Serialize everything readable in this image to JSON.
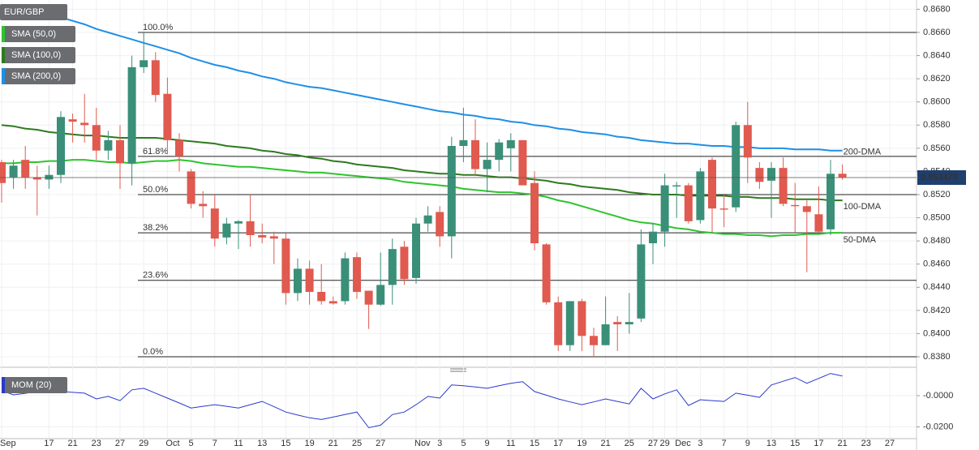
{
  "chart_data": [
    {
      "type": "candlestick",
      "title": "EUR/GBP",
      "categories": [
        "Sep",
        null,
        null,
        null,
        "17",
        null,
        "21",
        null,
        "23",
        null,
        "27",
        null,
        "29",
        null,
        "Oct",
        null,
        "5",
        null,
        "7",
        null,
        "11",
        null,
        "13",
        null,
        "15",
        null,
        "19",
        null,
        "21",
        null,
        "25",
        null,
        "27",
        null,
        null,
        "Nov",
        null,
        "3",
        null,
        "5",
        null,
        "9",
        null,
        "11",
        null,
        "15",
        null,
        "17",
        null,
        "19",
        null,
        "21",
        null,
        "25",
        null,
        "27",
        "29",
        "Dec",
        null,
        "3",
        null,
        "7",
        null,
        "9",
        null,
        "13",
        null,
        "15",
        null,
        "17",
        null,
        "21",
        null,
        "23",
        null,
        "27"
      ],
      "open": [
        0.8548,
        0.8535,
        0.855,
        0.8535,
        0.8533,
        0.8537,
        0.8585,
        0.8582,
        0.858,
        0.8558,
        0.8567,
        0.8547,
        0.863,
        0.8636,
        0.8607,
        0.8567,
        0.854,
        0.8512,
        0.8508,
        0.8483,
        0.8495,
        0.8497,
        0.8485,
        0.8484,
        0.8482,
        0.8435,
        0.8456,
        0.8436,
        0.8428,
        0.8428,
        0.8466,
        0.8437,
        0.8425,
        0.8442,
        0.8475,
        0.8448,
        0.8495,
        0.8505,
        0.8484,
        0.8562,
        0.8567,
        0.8542,
        0.855,
        0.856,
        0.8567,
        0.853,
        0.8477,
        0.8427,
        0.839,
        0.8428,
        0.8398,
        0.839,
        0.841,
        0.8408,
        0.8413,
        0.8478,
        0.8488,
        0.8527,
        0.8528,
        0.8498,
        0.855,
        0.8508,
        0.8509,
        0.858,
        0.8543,
        0.8532,
        0.8543,
        0.8511,
        0.851,
        0.8503,
        0.849,
        0.8538,
        null,
        null,
        null,
        null
      ],
      "high": [
        0.855,
        0.855,
        0.8562,
        0.8545,
        0.8545,
        0.8592,
        0.859,
        0.8607,
        0.8595,
        0.8575,
        0.858,
        0.864,
        0.866,
        0.8643,
        0.8621,
        0.8573,
        0.8542,
        0.8523,
        0.852,
        0.85,
        0.8498,
        0.852,
        0.8495,
        0.8488,
        0.8487,
        0.8465,
        0.8463,
        0.846,
        0.8432,
        0.847,
        0.847,
        0.8437,
        0.847,
        0.8482,
        0.848,
        0.85,
        0.851,
        0.851,
        0.857,
        0.8595,
        0.8585,
        0.8565,
        0.8568,
        0.8573,
        0.8567,
        0.854,
        0.8478,
        0.8432,
        0.8428,
        0.843,
        0.8405,
        0.8432,
        0.8415,
        0.8435,
        0.849,
        0.8495,
        0.8538,
        0.8531,
        0.853,
        0.8543,
        0.8552,
        0.852,
        0.8583,
        0.86,
        0.8548,
        0.8548,
        0.8552,
        0.853,
        0.8515,
        0.8527,
        0.855,
        0.8546,
        null,
        null,
        null,
        null
      ],
      "low": [
        0.8513,
        0.8525,
        0.8525,
        0.8502,
        0.8525,
        0.853,
        0.8565,
        0.8565,
        0.855,
        0.855,
        0.8525,
        0.8528,
        0.8625,
        0.86,
        0.8555,
        0.854,
        0.8508,
        0.85,
        0.8475,
        0.8477,
        0.8473,
        0.8475,
        0.8478,
        0.846,
        0.8425,
        0.8428,
        0.8425,
        0.8425,
        0.8425,
        0.8425,
        0.843,
        0.8404,
        0.8424,
        0.8425,
        0.8442,
        0.8443,
        0.8488,
        0.8475,
        0.8465,
        0.8548,
        0.8536,
        0.8522,
        0.854,
        0.854,
        0.8528,
        0.8472,
        0.8425,
        0.8385,
        0.8385,
        0.8385,
        0.838,
        0.839,
        0.8385,
        0.84,
        0.841,
        0.846,
        0.8475,
        0.85,
        0.8495,
        0.8495,
        0.8487,
        0.8492,
        0.8505,
        0.853,
        0.8525,
        0.85,
        0.851,
        0.8487,
        0.8453,
        0.8487,
        0.8485,
        0.8533,
        null,
        null,
        null,
        null
      ],
      "close": [
        0.853,
        0.8545,
        0.8535,
        0.8533,
        0.8537,
        0.8587,
        0.8583,
        0.858,
        0.8558,
        0.8567,
        0.8547,
        0.863,
        0.8636,
        0.8606,
        0.8567,
        0.8553,
        0.8512,
        0.851,
        0.8482,
        0.8495,
        0.8497,
        0.8485,
        0.8483,
        0.8482,
        0.8435,
        0.8456,
        0.8436,
        0.8428,
        0.8426,
        0.8465,
        0.8436,
        0.8425,
        0.8442,
        0.8473,
        0.8447,
        0.8495,
        0.8502,
        0.8484,
        0.8562,
        0.8567,
        0.8542,
        0.855,
        0.8565,
        0.8567,
        0.8528,
        0.8478,
        0.8427,
        0.839,
        0.8428,
        0.8398,
        0.839,
        0.8408,
        0.8408,
        0.841,
        0.8477,
        0.8488,
        0.8528,
        0.8528,
        0.8497,
        0.854,
        0.8508,
        0.8507,
        0.858,
        0.8552,
        0.8531,
        0.8543,
        0.8512,
        0.851,
        0.8505,
        0.8488,
        0.8538,
        0.8535,
        null,
        null,
        null,
        null
      ],
      "up_color": "#3a8f78",
      "down_color": "#e05a4f",
      "series": [
        {
          "name": "SMA (50,0)",
          "label": "50-DMA",
          "color": "#2ec42e",
          "values": [
            0.8547,
            0.8547,
            0.8548,
            0.8548,
            0.8549,
            0.8549,
            0.855,
            0.855,
            0.8549,
            0.8548,
            0.8548,
            0.8547,
            0.8548,
            0.8549,
            0.8549,
            0.855,
            0.8549,
            0.8547,
            0.8546,
            0.8545,
            0.8544,
            0.8544,
            0.8543,
            0.8542,
            0.8541,
            0.854,
            0.8539,
            0.8539,
            0.8538,
            0.8537,
            0.8536,
            0.8535,
            0.8534,
            0.8533,
            0.8531,
            0.853,
            0.8529,
            0.8528,
            0.8527,
            0.8525,
            0.8524,
            0.8523,
            0.8522,
            0.8522,
            0.8521,
            0.852,
            0.8518,
            0.8515,
            0.8513,
            0.851,
            0.8507,
            0.8504,
            0.8501,
            0.8498,
            0.8496,
            0.8495,
            0.8493,
            0.8491,
            0.849,
            0.8488,
            0.8487,
            0.8486,
            0.8486,
            0.8485,
            0.8485,
            0.8484,
            0.8485,
            0.8485,
            0.8486,
            0.8486,
            0.8487,
            0.8487,
            null,
            null,
            null,
            null
          ]
        },
        {
          "name": "SMA (100,0)",
          "label": "100-DMA",
          "color": "#2f7a1f",
          "values": [
            0.858,
            0.8579,
            0.8577,
            0.8576,
            0.8574,
            0.8573,
            0.8572,
            0.8571,
            0.8571,
            0.857,
            0.8569,
            0.8569,
            0.8569,
            0.8569,
            0.8568,
            0.8567,
            0.8566,
            0.8565,
            0.8564,
            0.8562,
            0.8561,
            0.856,
            0.8558,
            0.8557,
            0.8555,
            0.8554,
            0.8552,
            0.8551,
            0.8549,
            0.8548,
            0.8546,
            0.8545,
            0.8544,
            0.8543,
            0.8541,
            0.854,
            0.8539,
            0.8538,
            0.8538,
            0.8537,
            0.8537,
            0.8536,
            0.8535,
            0.8535,
            0.8534,
            0.8533,
            0.8532,
            0.853,
            0.8529,
            0.8527,
            0.8526,
            0.8525,
            0.8524,
            0.8522,
            0.8521,
            0.852,
            0.852,
            0.852,
            0.8519,
            0.8519,
            0.8519,
            0.8519,
            0.8518,
            0.8518,
            0.8517,
            0.8517,
            0.8517,
            0.8516,
            0.8516,
            0.8516,
            0.8515,
            0.8515,
            null,
            null,
            null,
            null
          ]
        },
        {
          "name": "SMA (200,0)",
          "label": "200-DMA",
          "color": "#1e8fe6",
          "values": [
            0.8683,
            0.8681,
            0.8679,
            0.8677,
            0.8675,
            0.8673,
            0.867,
            0.8667,
            0.8663,
            0.866,
            0.8657,
            0.8654,
            0.8651,
            0.8648,
            0.8645,
            0.8642,
            0.8638,
            0.8635,
            0.8632,
            0.863,
            0.8627,
            0.8625,
            0.8622,
            0.862,
            0.8617,
            0.8615,
            0.8613,
            0.8612,
            0.861,
            0.8608,
            0.8606,
            0.8604,
            0.8602,
            0.86,
            0.8598,
            0.8596,
            0.8594,
            0.8592,
            0.8591,
            0.8589,
            0.8588,
            0.8586,
            0.8585,
            0.8583,
            0.8582,
            0.858,
            0.8579,
            0.8577,
            0.8576,
            0.8574,
            0.8573,
            0.8572,
            0.857,
            0.8569,
            0.8567,
            0.8566,
            0.8565,
            0.8564,
            0.8564,
            0.8563,
            0.8562,
            0.8562,
            0.8561,
            0.8561,
            0.856,
            0.856,
            0.856,
            0.8559,
            0.8559,
            0.8559,
            0.8558,
            0.8558,
            null,
            null,
            null,
            null
          ]
        }
      ],
      "levels": [
        {
          "value": 0.866,
          "label": "100.0%"
        },
        {
          "value": 0.8553,
          "label": "61.8%"
        },
        {
          "value": 0.852,
          "label": "50.0%"
        },
        {
          "value": 0.8487,
          "label": "38.2%"
        },
        {
          "value": 0.8446,
          "label": "23.6%"
        },
        {
          "value": 0.838,
          "label": "0.0%"
        }
      ],
      "last_price": {
        "value": 0.85347,
        "label": "0.853470"
      },
      "ylim": [
        0.8373,
        0.8688
      ],
      "yticks": [
        {
          "value": 0.838,
          "label": "0.8380"
        },
        {
          "value": 0.84,
          "label": "0.8400"
        },
        {
          "value": 0.842,
          "label": "0.8420"
        },
        {
          "value": 0.844,
          "label": "0.8440"
        },
        {
          "value": 0.846,
          "label": "0.8460"
        },
        {
          "value": 0.848,
          "label": "0.8480"
        },
        {
          "value": 0.85,
          "label": "0.8500"
        },
        {
          "value": 0.852,
          "label": "0.8520"
        },
        {
          "value": 0.854,
          "label": "0.8540"
        },
        {
          "value": 0.856,
          "label": "0.8560"
        },
        {
          "value": 0.858,
          "label": "0.8580"
        },
        {
          "value": 0.86,
          "label": "0.8600"
        },
        {
          "value": 0.862,
          "label": "0.8620"
        },
        {
          "value": 0.864,
          "label": "0.8640"
        },
        {
          "value": 0.866,
          "label": "0.8660"
        },
        {
          "value": 0.868,
          "label": "0.8680"
        }
      ],
      "grid": true
    },
    {
      "type": "line",
      "series": [
        {
          "name": "MOM (20)",
          "color": "#2a39c9",
          "values": [
            0.0032,
            0.0005,
            0.0015,
            0.0026,
            0.0026,
            0.0026,
            0.0021,
            0.0016,
            -0.0021,
            -0.0005,
            -0.0032,
            0.0037,
            0.0047,
            0.0016,
            -0.0016,
            -0.0047,
            -0.0079,
            -0.0068,
            -0.0058,
            -0.0068,
            -0.0079,
            -0.0058,
            -0.0037,
            -0.0071,
            -0.0105,
            -0.0124,
            -0.0142,
            -0.0153,
            -0.0137,
            -0.0121,
            -0.0105,
            -0.0205,
            -0.0189,
            -0.0121,
            -0.0105,
            -0.0058,
            -0.0005,
            -0.0016,
            0.0068,
            0.0063,
            0.0055,
            0.0047,
            0.0063,
            0.0079,
            0.0089,
            0.0026,
            0.0003,
            -0.0021,
            -0.004,
            -0.0058,
            -0.004,
            -0.0021,
            -0.0037,
            -0.0053,
            0.0047,
            -0.0021,
            0.0011,
            0.0037,
            -0.0063,
            -0.0026,
            -0.0032,
            -0.0037,
            0.0016,
            0.0003,
            -0.0011,
            0.0068,
            0.0092,
            0.0116,
            0.0079,
            0.011,
            0.0142,
            0.0126,
            null,
            null,
            null,
            null
          ]
        }
      ],
      "ylim": [
        -0.027,
        0.0145
      ],
      "yticks": [
        {
          "value": 0,
          "label": "-0.0000"
        },
        {
          "value": -0.02,
          "label": "-0.0200"
        }
      ],
      "grid": true
    }
  ]
}
